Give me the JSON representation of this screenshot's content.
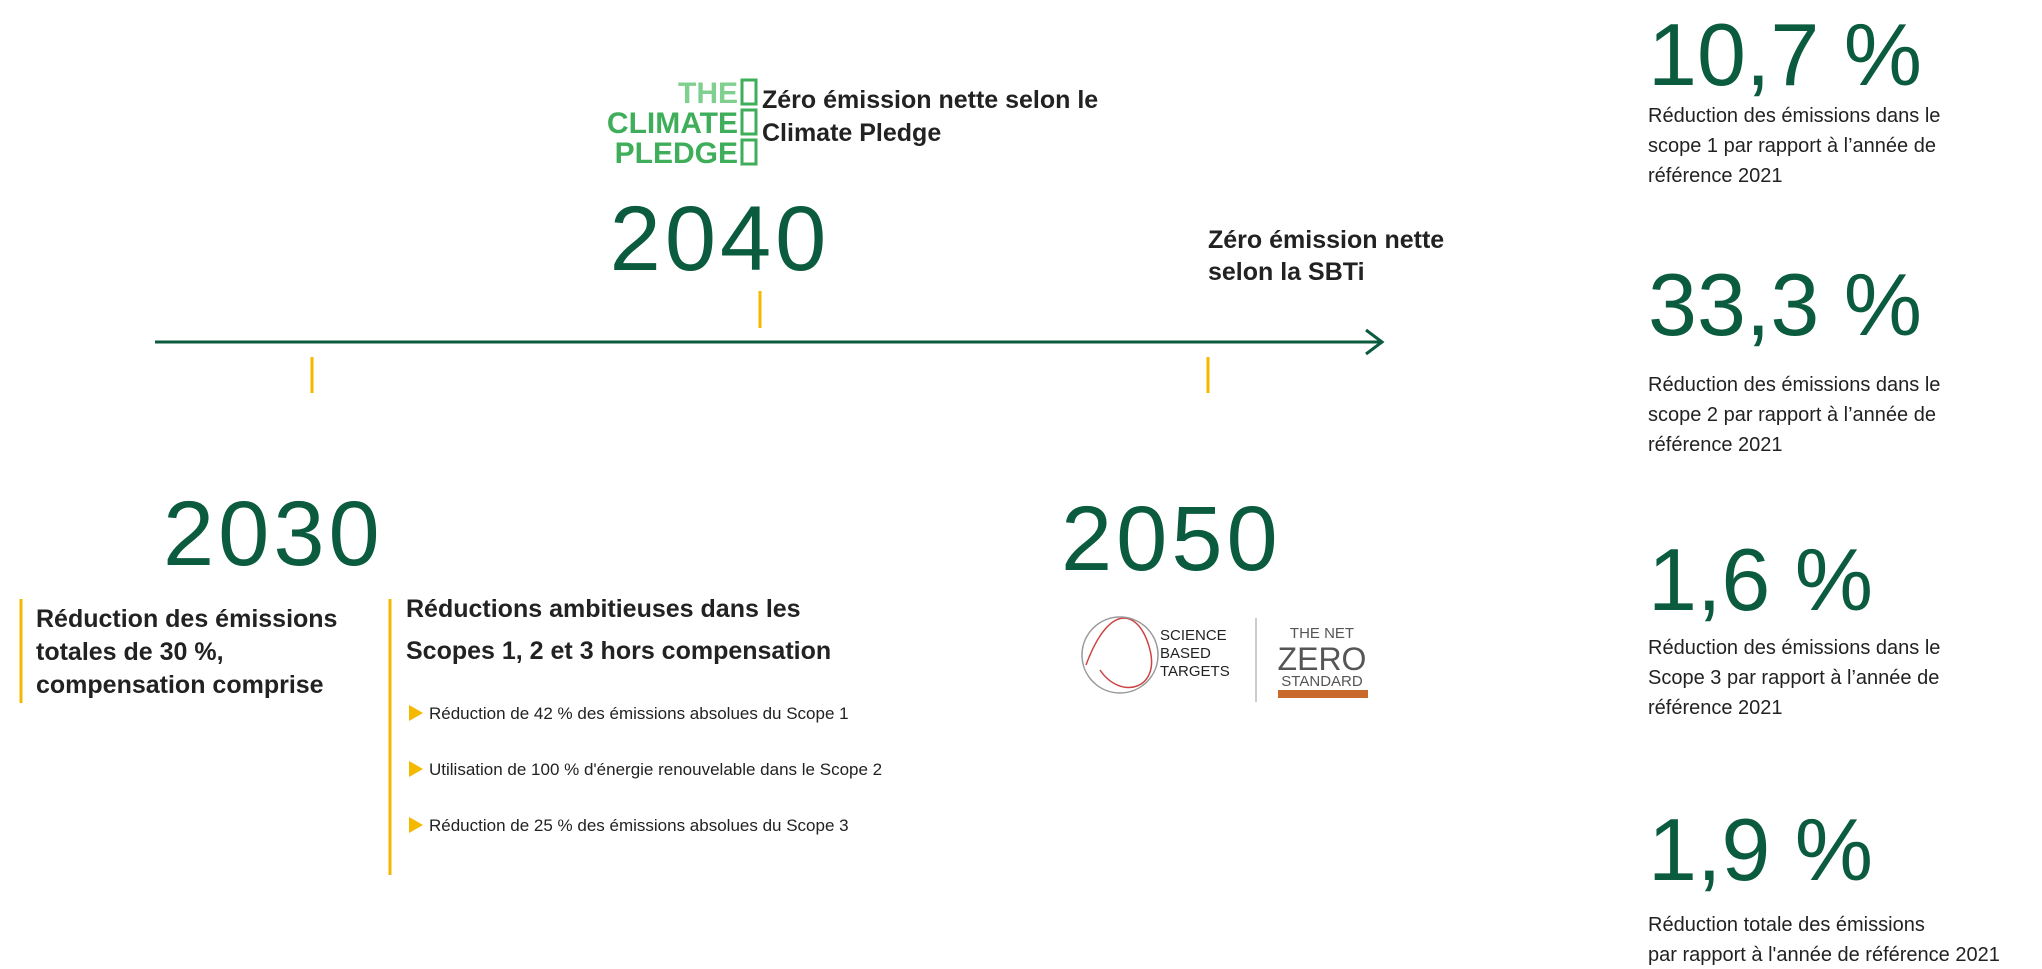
{
  "climate_pledge": {
    "logo": [
      "THE",
      "CLIMATE",
      "PLEDGE"
    ],
    "label": [
      "Zéro émission nette selon le",
      "Climate Pledge"
    ]
  },
  "milestones": [
    {
      "year": "2030",
      "text": [
        "Réduction des émissions",
        "totales de 30 %,",
        "compensation comprise"
      ]
    },
    {
      "year": "2040"
    },
    {
      "year": "2050",
      "label": [
        "Zéro émission nette",
        "selon la SBTi"
      ]
    }
  ],
  "targets": {
    "heading": [
      "Réductions ambitieuses dans les",
      "Scopes 1, 2 et 3 hors compensation"
    ],
    "bullets": [
      "Réduction de 42 % des émissions absolues du Scope 1",
      "Utilisation de 100 % d'énergie renouvelable dans le Scope 2",
      "Réduction de 25 % des émissions absolues du Scope 3"
    ]
  },
  "sbti_logo": {
    "left": [
      "SCIENCE",
      "BASED",
      "TARGETS"
    ],
    "right": [
      "THE NET",
      "ZERO",
      "STANDARD"
    ]
  },
  "stats": [
    {
      "value": "10,7 %",
      "text": [
        "Réduction des émissions dans le",
        "scope 1 par rapport à l’année de",
        "référence 2021"
      ]
    },
    {
      "value": "33,3 %",
      "text": [
        "Réduction des émissions dans le",
        "scope 2 par rapport à l’année de",
        "référence 2021"
      ]
    },
    {
      "value": "1,6 %",
      "text": [
        "Réduction des émissions dans le",
        "Scope 3 par rapport à l’année de",
        "référence 2021"
      ]
    },
    {
      "value": "1,9 %",
      "text": [
        "Réduction totale des émissions",
        "par rapport à l'année de référence 2021"
      ]
    }
  ]
}
